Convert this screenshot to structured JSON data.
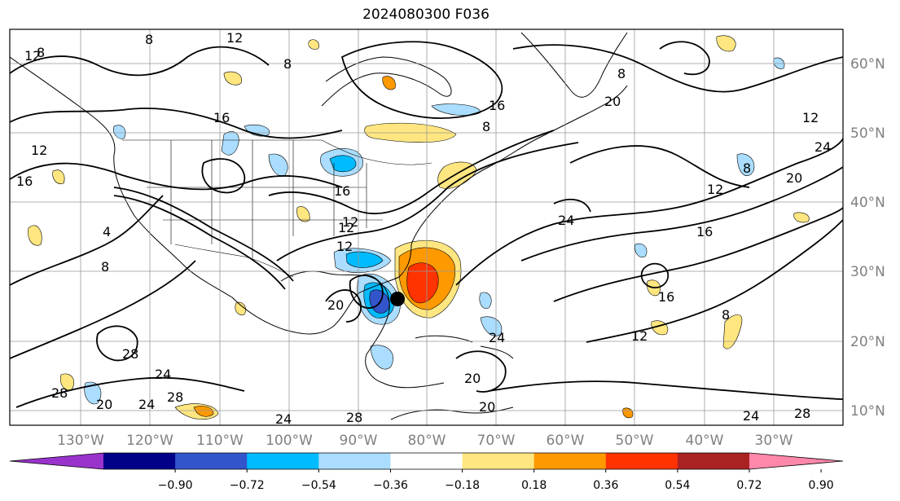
{
  "title": "2024080300 F036",
  "map": {
    "lon_labels": [
      "130°W",
      "120°W",
      "110°W",
      "100°W",
      "90°W",
      "80°W",
      "70°W",
      "60°W",
      "50°W",
      "40°W",
      "30°W"
    ],
    "lat_labels": [
      "60°N",
      "50°N",
      "40°N",
      "30°N",
      "20°N",
      "10°N"
    ],
    "lon_values": [
      -130,
      -120,
      -110,
      -100,
      -90,
      -80,
      -70,
      -60,
      -50,
      -40,
      -30
    ],
    "lat_values": [
      60,
      50,
      40,
      30,
      20,
      10
    ],
    "contour_labels": [
      "8",
      "12",
      "12",
      "8",
      "8",
      "16",
      "12",
      "8",
      "20",
      "8",
      "12",
      "16",
      "12",
      "4",
      "8",
      "20",
      "12",
      "8",
      "12",
      "16",
      "16",
      "12",
      "24",
      "24",
      "16",
      "16",
      "20",
      "12",
      "8",
      "28",
      "20",
      "24",
      "28",
      "24",
      "20",
      "28",
      "24",
      "28",
      "20",
      "24",
      "28",
      "24"
    ],
    "storm_marker": "tropical-cyclone-center"
  },
  "colorbar": {
    "ticks": [
      "−0.90",
      "−0.72",
      "−0.54",
      "−0.36",
      "−0.18",
      "0.18",
      "0.36",
      "0.54",
      "0.72",
      "0.90"
    ],
    "colors": [
      "#9933cc",
      "#000088",
      "#3355cc",
      "#00bbff",
      "#aaddff",
      "#ffffff",
      "#ffe680",
      "#ff9900",
      "#ff3300",
      "#aa2222",
      "#ff88aa"
    ]
  }
}
